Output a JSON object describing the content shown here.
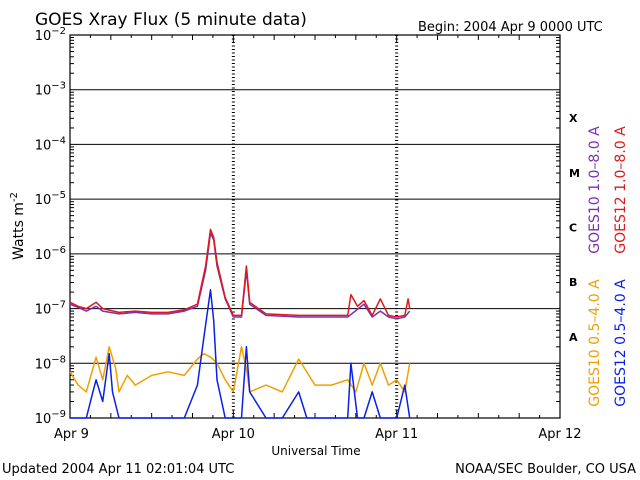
{
  "header": {
    "title": "GOES Xray Flux (5 minute data)",
    "begin": "Begin:  2004 Apr 9 0000 UTC"
  },
  "footer": {
    "updated": "Updated 2004 Apr 11 02:01:04 UTC",
    "credit": "NOAA/SEC Boulder, CO USA"
  },
  "chart_data": {
    "type": "line",
    "title": "GOES Xray Flux (5 minute data)",
    "xlabel": "Universal Time",
    "ylabel": "Watts m",
    "ylabel_sup": "-2",
    "y_scale": "log",
    "ylim": [
      1e-09,
      0.01
    ],
    "x_unit": "days since 2004 Apr 9 0000 UTC",
    "xlim": [
      0,
      3
    ],
    "x_ticks": [
      {
        "x": 0,
        "label": "Apr 9"
      },
      {
        "x": 1,
        "label": "Apr 10"
      },
      {
        "x": 2,
        "label": "Apr 11"
      },
      {
        "x": 3,
        "label": "Apr 12"
      }
    ],
    "y_ticks": [
      {
        "exp": -2,
        "base": "10",
        "sup": "−2"
      },
      {
        "exp": -3,
        "base": "10",
        "sup": "−3"
      },
      {
        "exp": -4,
        "base": "10",
        "sup": "−4"
      },
      {
        "exp": -5,
        "base": "10",
        "sup": "−5"
      },
      {
        "exp": -6,
        "base": "10",
        "sup": "−6"
      },
      {
        "exp": -7,
        "base": "10",
        "sup": "−7"
      },
      {
        "exp": -8,
        "base": "10",
        "sup": "−8"
      },
      {
        "exp": -9,
        "base": "10",
        "sup": "−9"
      }
    ],
    "flare_classes": [
      {
        "label": "X",
        "exp": -3.5
      },
      {
        "label": "M",
        "exp": -4.5
      },
      {
        "label": "C",
        "exp": -5.5
      },
      {
        "label": "B",
        "exp": -6.5
      },
      {
        "label": "A",
        "exp": -7.5
      }
    ],
    "grid": true,
    "legend_position": "right",
    "series": [
      {
        "name": "GOES10 1.0–8.0 A",
        "color": "#7b2fb3",
        "points": [
          [
            0,
            1.2e-07
          ],
          [
            0.05,
            1.05e-07
          ],
          [
            0.1,
            9e-08
          ],
          [
            0.16,
            1.1e-07
          ],
          [
            0.2,
            9e-08
          ],
          [
            0.3,
            8e-08
          ],
          [
            0.4,
            8.5e-08
          ],
          [
            0.5,
            8e-08
          ],
          [
            0.6,
            8e-08
          ],
          [
            0.7,
            9e-08
          ],
          [
            0.78,
            1.1e-07
          ],
          [
            0.83,
            5e-07
          ],
          [
            0.86,
            2.4e-06
          ],
          [
            0.88,
            1.8e-06
          ],
          [
            0.9,
            6e-07
          ],
          [
            0.95,
            1.5e-07
          ],
          [
            1.0,
            7e-08
          ],
          [
            1.05,
            7e-08
          ],
          [
            1.08,
            5e-07
          ],
          [
            1.1,
            1.2e-07
          ],
          [
            1.2,
            7.5e-08
          ],
          [
            1.4,
            7e-08
          ],
          [
            1.6,
            7e-08
          ],
          [
            1.7,
            7e-08
          ],
          [
            1.8,
            1.2e-07
          ],
          [
            1.85,
            7e-08
          ],
          [
            1.9,
            9e-08
          ],
          [
            1.95,
            7e-08
          ],
          [
            2.0,
            6.5e-08
          ],
          [
            2.05,
            7e-08
          ],
          [
            2.08,
            9e-08
          ]
        ]
      },
      {
        "name": "GOES12 1.0–8.0 A",
        "color": "#e01818",
        "points": [
          [
            0,
            1.3e-07
          ],
          [
            0.05,
            1.1e-07
          ],
          [
            0.1,
            1e-07
          ],
          [
            0.16,
            1.3e-07
          ],
          [
            0.2,
            1e-07
          ],
          [
            0.3,
            8.5e-08
          ],
          [
            0.4,
            9e-08
          ],
          [
            0.5,
            8.5e-08
          ],
          [
            0.6,
            8.5e-08
          ],
          [
            0.7,
            9.5e-08
          ],
          [
            0.78,
            1.2e-07
          ],
          [
            0.83,
            6e-07
          ],
          [
            0.86,
            2.8e-06
          ],
          [
            0.88,
            2e-06
          ],
          [
            0.9,
            7e-07
          ],
          [
            0.95,
            1.6e-07
          ],
          [
            1.0,
            7.5e-08
          ],
          [
            1.05,
            7.5e-08
          ],
          [
            1.08,
            6e-07
          ],
          [
            1.1,
            1.3e-07
          ],
          [
            1.2,
            8e-08
          ],
          [
            1.4,
            7.5e-08
          ],
          [
            1.6,
            7.5e-08
          ],
          [
            1.7,
            7.5e-08
          ],
          [
            1.72,
            1.8e-07
          ],
          [
            1.76,
            1.1e-07
          ],
          [
            1.8,
            1.4e-07
          ],
          [
            1.85,
            7.5e-08
          ],
          [
            1.9,
            1.5e-07
          ],
          [
            1.95,
            7.5e-08
          ],
          [
            2.0,
            7e-08
          ],
          [
            2.05,
            7.5e-08
          ],
          [
            2.07,
            1.5e-07
          ],
          [
            2.08,
            1e-07
          ]
        ]
      },
      {
        "name": "GOES10 0.5–4.0 A",
        "color": "#f0a000",
        "points": [
          [
            0,
            7e-09
          ],
          [
            0.05,
            4e-09
          ],
          [
            0.1,
            3e-09
          ],
          [
            0.16,
            1.3e-08
          ],
          [
            0.2,
            5e-09
          ],
          [
            0.24,
            2e-08
          ],
          [
            0.28,
            8e-09
          ],
          [
            0.3,
            3e-09
          ],
          [
            0.35,
            6e-09
          ],
          [
            0.4,
            4e-09
          ],
          [
            0.5,
            6e-09
          ],
          [
            0.6,
            7e-09
          ],
          [
            0.7,
            6e-09
          ],
          [
            0.78,
            1.2e-08
          ],
          [
            0.82,
            1.5e-08
          ],
          [
            0.86,
            1.3e-08
          ],
          [
            0.9,
            1e-08
          ],
          [
            0.95,
            5e-09
          ],
          [
            1.0,
            3e-09
          ],
          [
            1.05,
            2e-08
          ],
          [
            1.08,
            8e-09
          ],
          [
            1.1,
            3e-09
          ],
          [
            1.2,
            4e-09
          ],
          [
            1.3,
            3e-09
          ],
          [
            1.4,
            1.2e-08
          ],
          [
            1.5,
            4e-09
          ],
          [
            1.6,
            4e-09
          ],
          [
            1.7,
            5e-09
          ],
          [
            1.75,
            3e-09
          ],
          [
            1.8,
            1e-08
          ],
          [
            1.85,
            4e-09
          ],
          [
            1.9,
            1e-08
          ],
          [
            1.95,
            4e-09
          ],
          [
            2.0,
            5e-09
          ],
          [
            2.05,
            3e-09
          ],
          [
            2.08,
            1e-08
          ]
        ]
      },
      {
        "name": "GOES12 0.5–4.0 A",
        "color": "#0a1fe8",
        "points": [
          [
            0,
            1e-09
          ],
          [
            0.05,
            1e-09
          ],
          [
            0.1,
            1e-09
          ],
          [
            0.14,
            3e-09
          ],
          [
            0.16,
            5e-09
          ],
          [
            0.2,
            2e-09
          ],
          [
            0.24,
            1.5e-08
          ],
          [
            0.26,
            3e-09
          ],
          [
            0.3,
            1e-09
          ],
          [
            0.4,
            1e-09
          ],
          [
            0.5,
            1e-09
          ],
          [
            0.6,
            1e-09
          ],
          [
            0.7,
            1e-09
          ],
          [
            0.78,
            4e-09
          ],
          [
            0.82,
            3e-08
          ],
          [
            0.86,
            2.2e-07
          ],
          [
            0.88,
            6e-08
          ],
          [
            0.9,
            5e-09
          ],
          [
            0.95,
            1e-09
          ],
          [
            1.0,
            1e-09
          ],
          [
            1.05,
            1e-09
          ],
          [
            1.08,
            2e-08
          ],
          [
            1.1,
            3e-09
          ],
          [
            1.2,
            1e-09
          ],
          [
            1.3,
            1e-09
          ],
          [
            1.4,
            3e-09
          ],
          [
            1.45,
            1e-09
          ],
          [
            1.5,
            1e-09
          ],
          [
            1.6,
            1e-09
          ],
          [
            1.7,
            1e-09
          ],
          [
            1.72,
            1e-08
          ],
          [
            1.76,
            1e-09
          ],
          [
            1.8,
            1e-09
          ],
          [
            1.85,
            3e-09
          ],
          [
            1.9,
            1e-09
          ],
          [
            1.95,
            1e-09
          ],
          [
            2.0,
            1e-09
          ],
          [
            2.05,
            4e-09
          ],
          [
            2.08,
            1e-09
          ]
        ]
      }
    ]
  }
}
